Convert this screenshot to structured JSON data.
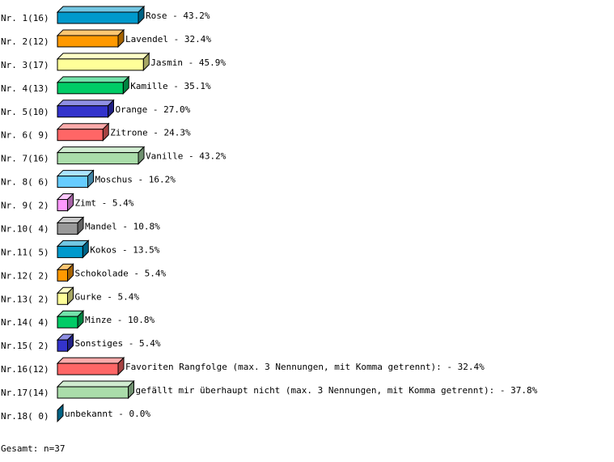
{
  "chart_data": {
    "type": "bar",
    "orientation": "horizontal",
    "style": "3d",
    "grid": false,
    "xlim": [
      0,
      100
    ],
    "rows": [
      {
        "label": "Nr. 1",
        "count": "16",
        "name": "Rose",
        "value": 43.2,
        "color": "#0099cc"
      },
      {
        "label": "Nr. 2",
        "count": "12",
        "name": "Lavendel",
        "value": 32.4,
        "color": "#ff9900"
      },
      {
        "label": "Nr. 3",
        "count": "17",
        "name": "Jasmin",
        "value": 45.9,
        "color": "#ffff99"
      },
      {
        "label": "Nr. 4",
        "count": "13",
        "name": "Kamille",
        "value": 35.1,
        "color": "#00cc66"
      },
      {
        "label": "Nr. 5",
        "count": "10",
        "name": "Orange",
        "value": 27.0,
        "color": "#3333cc"
      },
      {
        "label": "Nr. 6",
        "count": " 9",
        "name": "Zitrone",
        "value": 24.3,
        "color": "#ff6666"
      },
      {
        "label": "Nr. 7",
        "count": "16",
        "name": "Vanille",
        "value": 43.2,
        "color": "#aaddaa"
      },
      {
        "label": "Nr. 8",
        "count": " 6",
        "name": "Moschus",
        "value": 16.2,
        "color": "#66ccff"
      },
      {
        "label": "Nr. 9",
        "count": " 2",
        "name": "Zimt",
        "value": 5.4,
        "color": "#ff99ff"
      },
      {
        "label": "Nr.10",
        "count": " 4",
        "name": "Mandel",
        "value": 10.8,
        "color": "#999999"
      },
      {
        "label": "Nr.11",
        "count": " 5",
        "name": "Kokos",
        "value": 13.5,
        "color": "#0099cc"
      },
      {
        "label": "Nr.12",
        "count": " 2",
        "name": "Schokolade",
        "value": 5.4,
        "color": "#ff9900"
      },
      {
        "label": "Nr.13",
        "count": " 2",
        "name": "Gurke",
        "value": 5.4,
        "color": "#ffff99"
      },
      {
        "label": "Nr.14",
        "count": " 4",
        "name": "Minze",
        "value": 10.8,
        "color": "#00cc66"
      },
      {
        "label": "Nr.15",
        "count": " 2",
        "name": "Sonstiges",
        "value": 5.4,
        "color": "#3333cc"
      },
      {
        "label": "Nr.16",
        "count": "12",
        "name": "Favoriten Rangfolge (max. 3 Nennungen, mit Komma getrennt):",
        "value": 32.4,
        "color": "#ff6666"
      },
      {
        "label": "Nr.17",
        "count": "14",
        "name": "gefällt mir überhaupt nicht (max. 3 Nennungen, mit Komma getrennt):",
        "value": 37.8,
        "color": "#aaddaa"
      },
      {
        "label": "Nr.18",
        "count": " 0",
        "name": "unbekannt",
        "value": 0.0,
        "color": "#0099cc"
      }
    ],
    "footer": "Gesamt: n=37"
  }
}
